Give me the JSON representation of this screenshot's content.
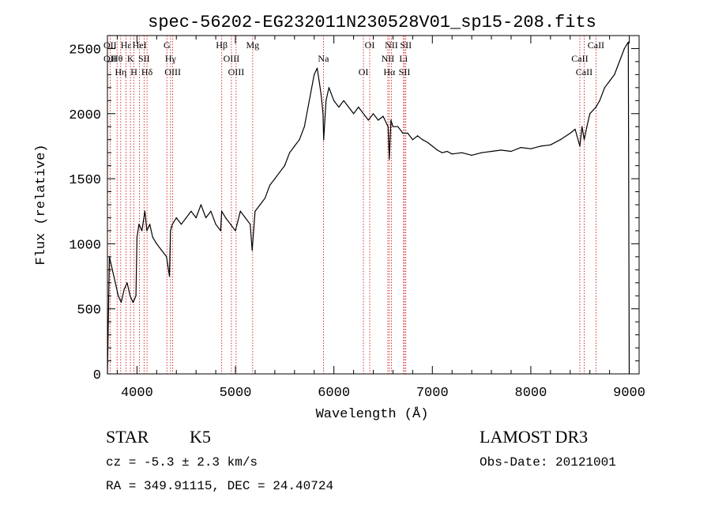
{
  "chart_data": {
    "type": "line",
    "title": "spec-56202-EG232011N230528V01_sp15-208.fits",
    "xlabel": "Wavelength (Å)",
    "ylabel": "Flux (relative)",
    "xlim": [
      3700,
      9100
    ],
    "ylim": [
      0,
      2600
    ],
    "x_ticks": [
      4000,
      5000,
      6000,
      7000,
      8000,
      9000
    ],
    "y_ticks": [
      0,
      500,
      1000,
      1500,
      2000,
      2500
    ],
    "grid": false,
    "series": [
      {
        "x": [
          3700,
          3720,
          3750,
          3780,
          3810,
          3840,
          3870,
          3900,
          3930,
          3960,
          3990,
          4000,
          4020,
          4050,
          4080,
          4100,
          4130,
          4160,
          4200,
          4250,
          4300,
          4330,
          4340,
          4360,
          4400,
          4450,
          4500,
          4550,
          4600,
          4650,
          4700,
          4750,
          4800,
          4850,
          4860,
          4900,
          4950,
          5000,
          5050,
          5100,
          5150,
          5170,
          5200,
          5250,
          5300,
          5350,
          5400,
          5450,
          5500,
          5550,
          5600,
          5650,
          5700,
          5750,
          5800,
          5830,
          5850,
          5870,
          5890,
          5896,
          5920,
          5950,
          6000,
          6050,
          6100,
          6150,
          6200,
          6250,
          6300,
          6350,
          6400,
          6450,
          6500,
          6550,
          6563,
          6580,
          6600,
          6650,
          6700,
          6750,
          6800,
          6850,
          6900,
          6950,
          7000,
          7050,
          7100,
          7150,
          7200,
          7300,
          7400,
          7500,
          7600,
          7700,
          7800,
          7900,
          8000,
          8100,
          8200,
          8300,
          8400,
          8450,
          8498,
          8520,
          8542,
          8570,
          8600,
          8662,
          8700,
          8750,
          8800,
          8850,
          8900,
          8950,
          8990,
          9000
        ],
        "y": [
          0,
          900,
          800,
          700,
          600,
          550,
          650,
          700,
          600,
          550,
          600,
          1050,
          1150,
          1100,
          1250,
          1100,
          1150,
          1050,
          1000,
          950,
          900,
          750,
          1100,
          1150,
          1200,
          1150,
          1200,
          1250,
          1200,
          1300,
          1200,
          1250,
          1150,
          1100,
          1250,
          1200,
          1150,
          1100,
          1250,
          1200,
          1150,
          950,
          1250,
          1300,
          1350,
          1450,
          1500,
          1550,
          1600,
          1700,
          1750,
          1800,
          1900,
          2100,
          2300,
          2350,
          2250,
          2150,
          2000,
          1800,
          2100,
          2200,
          2100,
          2050,
          2100,
          2050,
          2000,
          2050,
          2000,
          1950,
          2000,
          1950,
          1980,
          1900,
          1650,
          1950,
          1900,
          1900,
          1850,
          1850,
          1800,
          1830,
          1800,
          1780,
          1750,
          1720,
          1700,
          1710,
          1690,
          1700,
          1680,
          1700,
          1710,
          1720,
          1710,
          1740,
          1730,
          1750,
          1760,
          1800,
          1850,
          1880,
          1750,
          1900,
          1800,
          1900,
          2000,
          2050,
          2100,
          2200,
          2250,
          2300,
          2400,
          2500,
          2550,
          0
        ]
      }
    ],
    "lines": [
      {
        "x": 3727,
        "labels": [
          "OII",
          "OII"
        ]
      },
      {
        "x": 3798,
        "labels": [
          "Hθ"
        ]
      },
      {
        "x": 3835,
        "labels": [
          "Hη"
        ]
      },
      {
        "x": 3889,
        "labels": [
          "Hε"
        ]
      },
      {
        "x": 3934,
        "labels": [
          "K"
        ]
      },
      {
        "x": 3969,
        "labels": [
          "H"
        ]
      },
      {
        "x": 4026,
        "labels": [
          "HeI"
        ]
      },
      {
        "x": 4072,
        "labels": [
          "SII"
        ]
      },
      {
        "x": 4102,
        "labels": [
          "Hδ"
        ]
      },
      {
        "x": 4304,
        "labels": [
          "G"
        ]
      },
      {
        "x": 4341,
        "labels": [
          "Hγ"
        ]
      },
      {
        "x": 4363,
        "labels": [
          "OIII"
        ]
      },
      {
        "x": 4861,
        "labels": [
          "Hβ"
        ]
      },
      {
        "x": 4959,
        "labels": [
          "OIII"
        ]
      },
      {
        "x": 5007,
        "labels": [
          "OIII"
        ]
      },
      {
        "x": 5175,
        "labels": [
          "Mg"
        ]
      },
      {
        "x": 5894,
        "labels": [
          "Na"
        ]
      },
      {
        "x": 6300,
        "labels": [
          "OI"
        ]
      },
      {
        "x": 6364,
        "labels": [
          "OI"
        ]
      },
      {
        "x": 6548,
        "labels": [
          "NII"
        ]
      },
      {
        "x": 6563,
        "labels": [
          "Hα"
        ]
      },
      {
        "x": 6584,
        "labels": [
          "NII"
        ]
      },
      {
        "x": 6707,
        "labels": [
          "Li"
        ]
      },
      {
        "x": 6717,
        "labels": [
          "SII"
        ]
      },
      {
        "x": 6731,
        "labels": [
          "SII"
        ]
      },
      {
        "x": 8498,
        "labels": [
          "CaII"
        ]
      },
      {
        "x": 8542,
        "labels": [
          "CaII"
        ]
      },
      {
        "x": 8662,
        "labels": [
          "CaII"
        ]
      }
    ]
  },
  "info": {
    "object_class": "STAR",
    "subclass": "K5",
    "survey": "LAMOST DR3",
    "redshift": "cz = -5.3 ± 2.3 km/s",
    "obs_date": "Obs-Date: 20121001",
    "coords": "RA = 349.91115, DEC =  24.40724"
  },
  "colors": {
    "spectrum": "#000000",
    "line_marker": "#cc0000",
    "axis": "#000000"
  }
}
